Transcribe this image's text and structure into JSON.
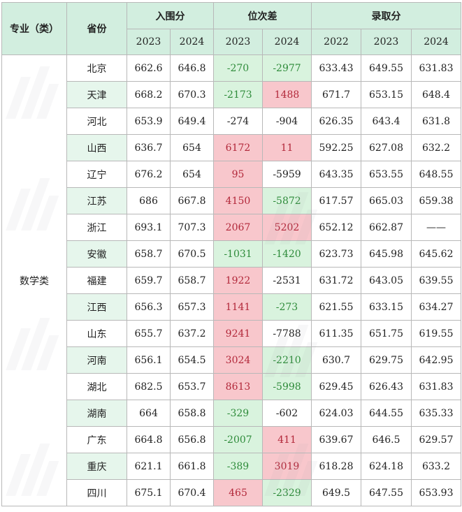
{
  "header": {
    "major_label": "专业（类）",
    "province_label": "省份",
    "groups": [
      "入围分",
      "位次差",
      "录取分"
    ],
    "years": [
      "2023",
      "2024",
      "2023",
      "2024",
      "2022",
      "2023",
      "2024"
    ]
  },
  "major": "数学类",
  "rows": [
    {
      "province": "北京",
      "entry": [
        "662.6",
        "646.8"
      ],
      "rank": [
        {
          "v": "-270",
          "t": "up"
        },
        {
          "v": "-2977",
          "t": "up"
        }
      ],
      "admit": [
        "633.43",
        "649.55",
        "631.83"
      ]
    },
    {
      "province": "天津",
      "entry": [
        "668.2",
        "670.3"
      ],
      "rank": [
        {
          "v": "-2173",
          "t": "up"
        },
        {
          "v": "1488",
          "t": "down"
        }
      ],
      "admit": [
        "671.7",
        "653.15",
        "648.4"
      ]
    },
    {
      "province": "河北",
      "entry": [
        "653.9",
        "649.4"
      ],
      "rank": [
        {
          "v": "-274",
          "t": "plain"
        },
        {
          "v": "-904",
          "t": "plain"
        }
      ],
      "admit": [
        "626.35",
        "643.4",
        "631.8"
      ]
    },
    {
      "province": "山西",
      "entry": [
        "636.7",
        "654"
      ],
      "rank": [
        {
          "v": "6172",
          "t": "down"
        },
        {
          "v": "11",
          "t": "down"
        }
      ],
      "admit": [
        "592.25",
        "627.08",
        "632.2"
      ]
    },
    {
      "province": "辽宁",
      "entry": [
        "676.2",
        "654"
      ],
      "rank": [
        {
          "v": "95",
          "t": "down"
        },
        {
          "v": "-5959",
          "t": "plain"
        }
      ],
      "admit": [
        "643.35",
        "653.55",
        "648.55"
      ]
    },
    {
      "province": "江苏",
      "entry": [
        "686",
        "667.8"
      ],
      "rank": [
        {
          "v": "4150",
          "t": "down"
        },
        {
          "v": "-5872",
          "t": "up"
        }
      ],
      "admit": [
        "617.57",
        "665.03",
        "659.38"
      ]
    },
    {
      "province": "浙江",
      "entry": [
        "693.1",
        "707.3"
      ],
      "rank": [
        {
          "v": "2067",
          "t": "down"
        },
        {
          "v": "5202",
          "t": "down"
        }
      ],
      "admit": [
        "652.12",
        "662.87",
        "——"
      ]
    },
    {
      "province": "安徽",
      "entry": [
        "658.7",
        "670.5"
      ],
      "rank": [
        {
          "v": "-1031",
          "t": "up"
        },
        {
          "v": "-1420",
          "t": "up"
        }
      ],
      "admit": [
        "623.73",
        "645.98",
        "645.62"
      ]
    },
    {
      "province": "福建",
      "entry": [
        "659.7",
        "658.7"
      ],
      "rank": [
        {
          "v": "1922",
          "t": "down"
        },
        {
          "v": "-2531",
          "t": "plain"
        }
      ],
      "admit": [
        "631.72",
        "643.05",
        "639.55"
      ]
    },
    {
      "province": "江西",
      "entry": [
        "656.3",
        "657.3"
      ],
      "rank": [
        {
          "v": "1141",
          "t": "down"
        },
        {
          "v": "-273",
          "t": "up"
        }
      ],
      "admit": [
        "621.55",
        "633.15",
        "634.27"
      ]
    },
    {
      "province": "山东",
      "entry": [
        "655.7",
        "637.2"
      ],
      "rank": [
        {
          "v": "9241",
          "t": "down"
        },
        {
          "v": "-7788",
          "t": "plain"
        }
      ],
      "admit": [
        "611.35",
        "651.75",
        "619.55"
      ]
    },
    {
      "province": "河南",
      "entry": [
        "656.1",
        "654.5"
      ],
      "rank": [
        {
          "v": "3024",
          "t": "down"
        },
        {
          "v": "-2210",
          "t": "up"
        }
      ],
      "admit": [
        "630.7",
        "629.75",
        "642.95"
      ]
    },
    {
      "province": "湖北",
      "entry": [
        "682.5",
        "653.7"
      ],
      "rank": [
        {
          "v": "8613",
          "t": "down"
        },
        {
          "v": "-5998",
          "t": "up"
        }
      ],
      "admit": [
        "629.45",
        "626.43",
        "631.83"
      ]
    },
    {
      "province": "湖南",
      "entry": [
        "664",
        "658.8"
      ],
      "rank": [
        {
          "v": "-329",
          "t": "up"
        },
        {
          "v": "-602",
          "t": "plain"
        }
      ],
      "admit": [
        "624.03",
        "644.55",
        "635.33"
      ]
    },
    {
      "province": "广东",
      "entry": [
        "664.8",
        "656.8"
      ],
      "rank": [
        {
          "v": "-2007",
          "t": "up"
        },
        {
          "v": "411",
          "t": "down"
        }
      ],
      "admit": [
        "639.67",
        "646.5",
        "629.57"
      ]
    },
    {
      "province": "重庆",
      "entry": [
        "621.1",
        "661.8"
      ],
      "rank": [
        {
          "v": "-389",
          "t": "up"
        },
        {
          "v": "3019",
          "t": "down"
        }
      ],
      "admit": [
        "618.28",
        "624.18",
        "633.2"
      ]
    },
    {
      "province": "四川",
      "entry": [
        "675.1",
        "670.4"
      ],
      "rank": [
        {
          "v": "465",
          "t": "down"
        },
        {
          "v": "-2329",
          "t": "up"
        }
      ],
      "admit": [
        "649.5",
        "647.55",
        "653.93"
      ]
    }
  ]
}
